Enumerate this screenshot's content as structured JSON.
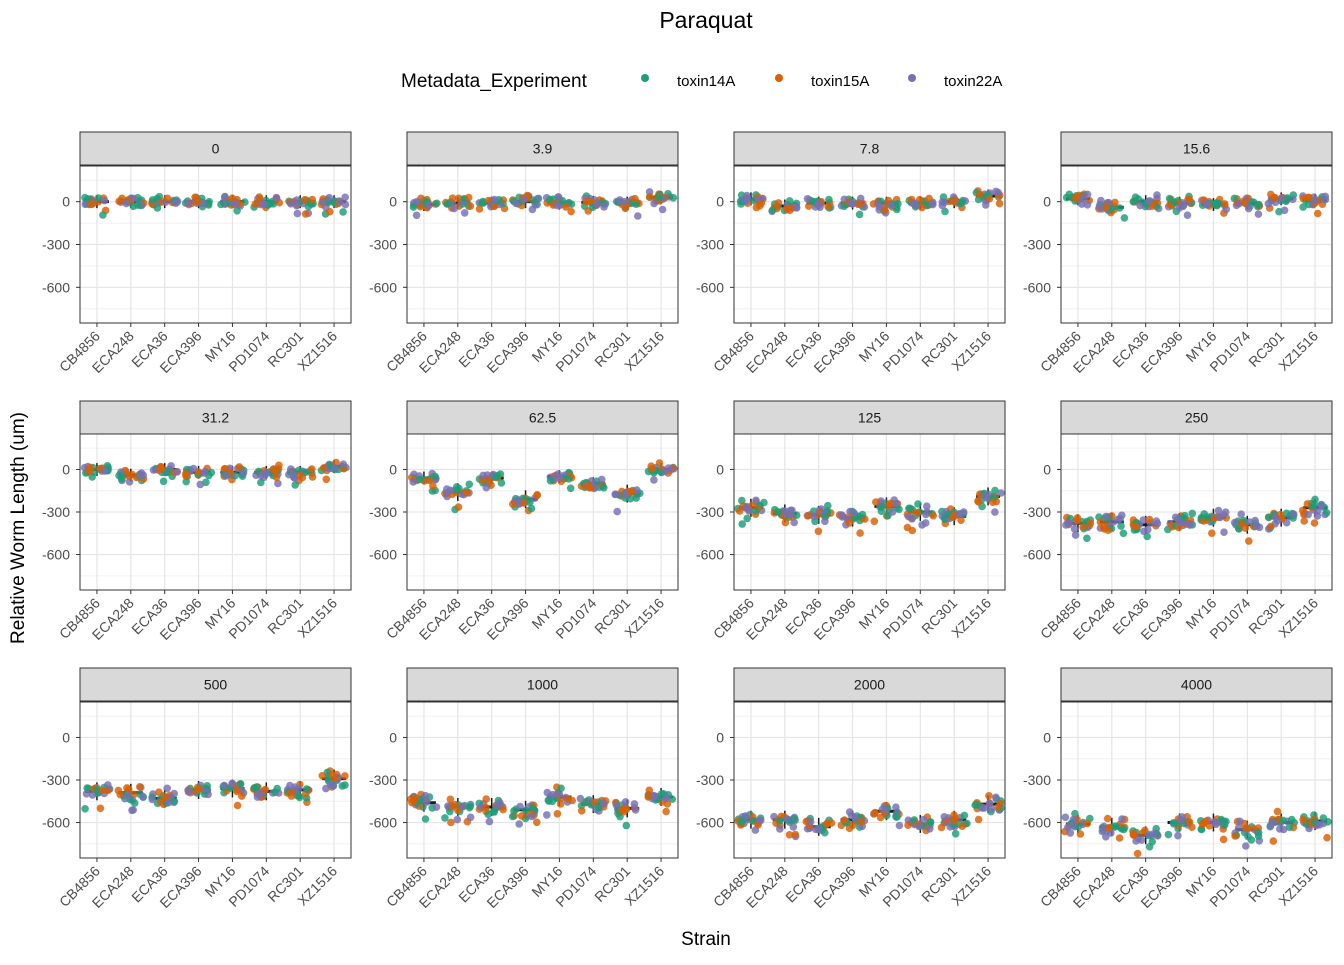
{
  "chart_data": {
    "type": "scatter",
    "subtype": "faceted jittered strip plot with boxplots",
    "title": "Paraquat",
    "xlabel": "Strain",
    "ylabel": "Relative Worm Length (um)",
    "legend": {
      "title": "Metadata_Experiment",
      "placement": "top",
      "entries": [
        {
          "name": "toxin14A",
          "color": "#1b9e77"
        },
        {
          "name": "toxin15A",
          "color": "#d95f02"
        },
        {
          "name": "toxin22A",
          "color": "#7570b3"
        }
      ]
    },
    "categories": [
      "CB4856",
      "ECA248",
      "ECA36",
      "ECA396",
      "MY16",
      "PD1074",
      "RC301",
      "XZ1516"
    ],
    "y_ticks": [
      0,
      -300,
      -600
    ],
    "y_tick_labels": [
      "0",
      "-300",
      "-600"
    ],
    "ylim": [
      -850,
      250
    ],
    "grid": true,
    "facets": [
      {
        "label": "0",
        "medians": [
          0,
          0,
          0,
          0,
          0,
          0,
          0,
          0
        ]
      },
      {
        "label": "3.9",
        "medians": [
          -20,
          -10,
          -10,
          0,
          -10,
          -5,
          -10,
          30
        ]
      },
      {
        "label": "7.8",
        "medians": [
          20,
          -30,
          -10,
          -10,
          -10,
          -10,
          0,
          40
        ]
      },
      {
        "label": "15.6",
        "medians": [
          20,
          -40,
          0,
          -10,
          -20,
          -10,
          20,
          10
        ]
      },
      {
        "label": "31.2",
        "medians": [
          0,
          -40,
          0,
          -20,
          -20,
          -20,
          -20,
          20
        ]
      },
      {
        "label": "62.5",
        "medians": [
          -60,
          -160,
          -60,
          -210,
          -50,
          -100,
          -170,
          0
        ]
      },
      {
        "label": "125",
        "medians": [
          -270,
          -310,
          -320,
          -340,
          -260,
          -300,
          -330,
          -190
        ]
      },
      {
        "label": "250",
        "medians": [
          -380,
          -370,
          -390,
          -370,
          -340,
          -390,
          -340,
          -270
        ]
      },
      {
        "label": "500",
        "medians": [
          -380,
          -390,
          -430,
          -370,
          -360,
          -380,
          -370,
          -290
        ]
      },
      {
        "label": "1000",
        "medians": [
          -460,
          -490,
          -490,
          -510,
          -420,
          -470,
          -500,
          -420
        ]
      },
      {
        "label": "2000",
        "medians": [
          -580,
          -580,
          -630,
          -580,
          -520,
          -610,
          -580,
          -470
        ]
      },
      {
        "label": "4000",
        "medians": [
          -610,
          -630,
          -690,
          -600,
          -600,
          -650,
          -600,
          -590
        ]
      }
    ]
  }
}
